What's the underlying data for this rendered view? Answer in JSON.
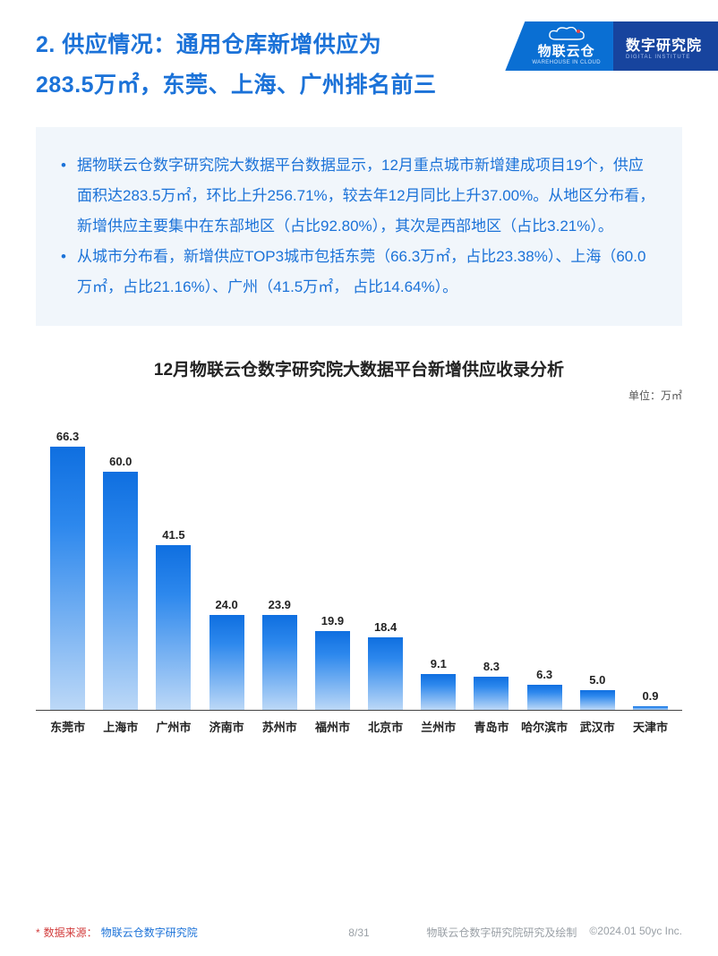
{
  "header": {
    "title_line1": "2. 供应情况：通用仓库新增供应为",
    "title_line2": "283.5万㎡，东莞、上海、广州排名前三",
    "title_color": "#1b72d8"
  },
  "brand": {
    "left_cn": "物联云仓",
    "left_en": "WAREHOUSE IN CLOUD",
    "right_cn": "数字研究院",
    "right_en": "DIGITAL INSTITUTE",
    "left_bg": "#0a6fd3",
    "right_bg": "#17449e"
  },
  "body": {
    "bullet1": "据物联云仓数字研究院大数据平台数据显示，12月重点城市新增建成项目19个，供应面积达283.5万㎡，环比上升256.71%，较去年12月同比上升37.00%。从地区分布看，新增供应主要集中在东部地区（占比92.80%），其次是西部地区（占比3.21%）。",
    "bullet2": "从城市分布看，新增供应TOP3城市包括东莞（66.3万㎡，占比23.38%）、上海（60.0万㎡，占比21.16%）、广州（41.5万㎡，  占比14.64%）。",
    "bg": "#f1f6fb",
    "text_color": "#1b72d8"
  },
  "chart": {
    "type": "bar",
    "title": "12月物联云仓数字研究院大数据平台新增供应收录分析",
    "unit_label": "单位：万㎡",
    "title_fontsize": 19,
    "label_fontsize": 13,
    "ylim": [
      0,
      70
    ],
    "bar_gradient_top": "#0f6fe0",
    "bar_gradient_mid": "#2d88ed",
    "bar_gradient_bottom": "#bcd8f7",
    "axis_color": "#444444",
    "background_color": "#ffffff",
    "bar_width": 0.66,
    "categories": [
      "东莞市",
      "上海市",
      "广州市",
      "济南市",
      "苏州市",
      "福州市",
      "北京市",
      "兰州市",
      "青岛市",
      "哈尔滨市",
      "武汉市",
      "天津市"
    ],
    "values": [
      66.3,
      60.0,
      41.5,
      24.0,
      23.9,
      19.9,
      18.4,
      9.1,
      8.3,
      6.3,
      5.0,
      0.9
    ]
  },
  "footer": {
    "source_label": "数据来源：",
    "source_value": "物联云仓数字研究院",
    "page_current": "8",
    "page_total": "31",
    "org": "物联云仓数字研究院研究及绘制",
    "copyright": "©2024.01 50yc Inc."
  }
}
